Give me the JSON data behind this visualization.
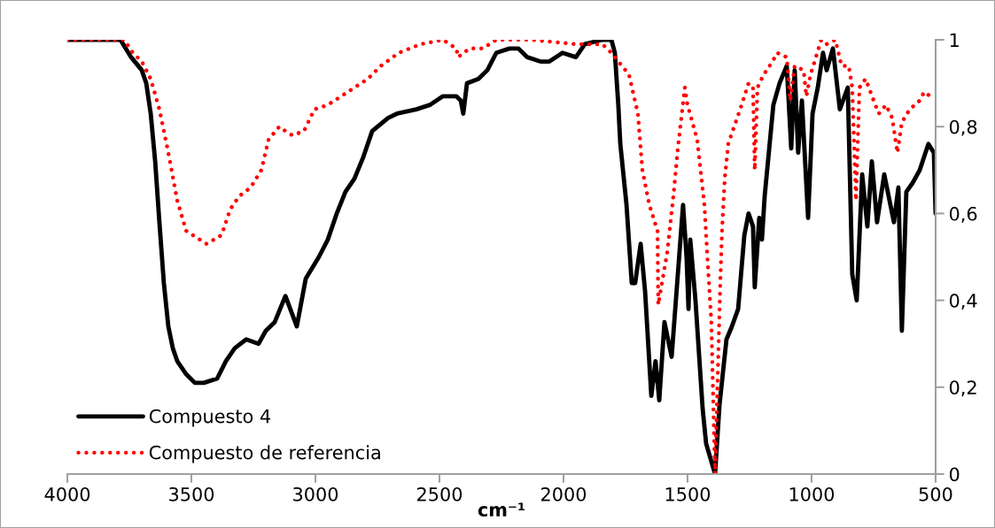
{
  "chart_data": {
    "type": "line",
    "xlabel": "cm⁻¹",
    "xlim": [
      4000,
      500
    ],
    "xticks": [
      4000,
      3500,
      3000,
      2500,
      2000,
      1500,
      1000,
      500
    ],
    "ylim": [
      0,
      1
    ],
    "yticks": [
      {
        "value": 0,
        "label": "0"
      },
      {
        "value": 0.2,
        "label": "0,2"
      },
      {
        "value": 0.4,
        "label": "0,4"
      },
      {
        "value": 0.6,
        "label": "0,6"
      },
      {
        "value": 0.8,
        "label": "0,8"
      },
      {
        "value": 1,
        "label": "1"
      }
    ],
    "grid": false,
    "legend": "bottom left",
    "marker": "none",
    "series": [
      {
        "name": "Compuesto 4",
        "color": "#000000",
        "line_style": "solid",
        "x": [
          4000,
          3786,
          3743,
          3700,
          3682,
          3664,
          3646,
          3629,
          3611,
          3593,
          3575,
          3557,
          3521,
          3486,
          3450,
          3396,
          3361,
          3325,
          3279,
          3229,
          3200,
          3164,
          3121,
          3075,
          3039,
          2986,
          2950,
          2914,
          2879,
          2843,
          2807,
          2771,
          2707,
          2671,
          2593,
          2539,
          2486,
          2432,
          2414,
          2404,
          2389,
          2343,
          2307,
          2271,
          2218,
          2182,
          2146,
          2093,
          2057,
          2004,
          1950,
          1914,
          1843,
          1807,
          1793,
          1779,
          1771,
          1746,
          1725,
          1711,
          1689,
          1671,
          1646,
          1629,
          1614,
          1593,
          1564,
          1543,
          1518,
          1504,
          1496,
          1489,
          1468,
          1439,
          1425,
          1389,
          1371,
          1343,
          1321,
          1296,
          1271,
          1254,
          1236,
          1229,
          1211,
          1200,
          1189,
          1154,
          1129,
          1100,
          1082,
          1068,
          1054,
          1039,
          1014,
          996,
          975,
          954,
          939,
          914,
          886,
          854,
          836,
          818,
          796,
          775,
          757,
          736,
          707,
          668,
          650,
          636,
          618,
          593,
          564,
          529,
          507,
          500
        ],
        "values": [
          1.0,
          1.0,
          0.96,
          0.93,
          0.9,
          0.83,
          0.72,
          0.58,
          0.44,
          0.34,
          0.29,
          0.26,
          0.23,
          0.21,
          0.21,
          0.22,
          0.26,
          0.29,
          0.31,
          0.3,
          0.33,
          0.35,
          0.41,
          0.34,
          0.45,
          0.5,
          0.54,
          0.6,
          0.65,
          0.68,
          0.73,
          0.79,
          0.82,
          0.83,
          0.84,
          0.85,
          0.87,
          0.87,
          0.86,
          0.83,
          0.9,
          0.91,
          0.93,
          0.97,
          0.98,
          0.98,
          0.96,
          0.95,
          0.95,
          0.97,
          0.96,
          0.99,
          1.0,
          1.0,
          0.97,
          0.85,
          0.76,
          0.62,
          0.44,
          0.44,
          0.53,
          0.42,
          0.18,
          0.26,
          0.17,
          0.35,
          0.27,
          0.43,
          0.62,
          0.5,
          0.38,
          0.54,
          0.4,
          0.15,
          0.07,
          0.0,
          0.16,
          0.31,
          0.34,
          0.38,
          0.55,
          0.6,
          0.57,
          0.43,
          0.59,
          0.54,
          0.64,
          0.85,
          0.9,
          0.94,
          0.75,
          0.93,
          0.74,
          0.86,
          0.59,
          0.83,
          0.89,
          0.97,
          0.93,
          0.98,
          0.84,
          0.89,
          0.46,
          0.4,
          0.69,
          0.57,
          0.72,
          0.58,
          0.69,
          0.58,
          0.66,
          0.33,
          0.65,
          0.67,
          0.7,
          0.76,
          0.74,
          0.6
        ]
      },
      {
        "name": "Compuesto de referencia",
        "color": "#ff0000",
        "line_style": "dotted",
        "x": [
          4000,
          3771,
          3736,
          3700,
          3664,
          3629,
          3593,
          3557,
          3521,
          3439,
          3379,
          3343,
          3307,
          3261,
          3218,
          3189,
          3146,
          3121,
          3093,
          3046,
          3004,
          2950,
          2896,
          2843,
          2789,
          2736,
          2664,
          2575,
          2486,
          2432,
          2425,
          2379,
          2325,
          2271,
          2129,
          1950,
          1843,
          1807,
          1736,
          1700,
          1682,
          1654,
          1621,
          1618,
          1582,
          1557,
          1539,
          1511,
          1500,
          1461,
          1432,
          1421,
          1404,
          1389,
          1368,
          1361,
          1350,
          1336,
          1318,
          1282,
          1254,
          1236,
          1229,
          1218,
          1193,
          1157,
          1139,
          1100,
          1086,
          1068,
          1032,
          1021,
          1004,
          961,
          939,
          904,
          879,
          850,
          836,
          821,
          807,
          782,
          743,
          729,
          700,
          675,
          654,
          636,
          604,
          564,
          546,
          521,
          504
        ],
        "values": [
          1.0,
          1.0,
          0.97,
          0.95,
          0.91,
          0.84,
          0.74,
          0.63,
          0.56,
          0.53,
          0.55,
          0.61,
          0.64,
          0.66,
          0.7,
          0.77,
          0.8,
          0.79,
          0.78,
          0.79,
          0.84,
          0.85,
          0.87,
          0.89,
          0.91,
          0.94,
          0.97,
          0.99,
          1.0,
          0.98,
          0.96,
          0.98,
          0.98,
          1.0,
          1.0,
          0.99,
          0.99,
          0.97,
          0.92,
          0.83,
          0.7,
          0.62,
          0.56,
          0.39,
          0.51,
          0.64,
          0.75,
          0.89,
          0.85,
          0.77,
          0.62,
          0.51,
          0.35,
          0.0,
          0.44,
          0.56,
          0.68,
          0.76,
          0.79,
          0.85,
          0.9,
          0.89,
          0.7,
          0.89,
          0.92,
          0.95,
          0.97,
          0.96,
          0.86,
          0.94,
          0.93,
          0.87,
          0.92,
          1.0,
          0.99,
          1.0,
          0.94,
          0.94,
          0.89,
          0.63,
          0.89,
          0.91,
          0.85,
          0.83,
          0.85,
          0.82,
          0.74,
          0.81,
          0.84,
          0.86,
          0.88,
          0.87,
          0.87
        ]
      }
    ]
  }
}
